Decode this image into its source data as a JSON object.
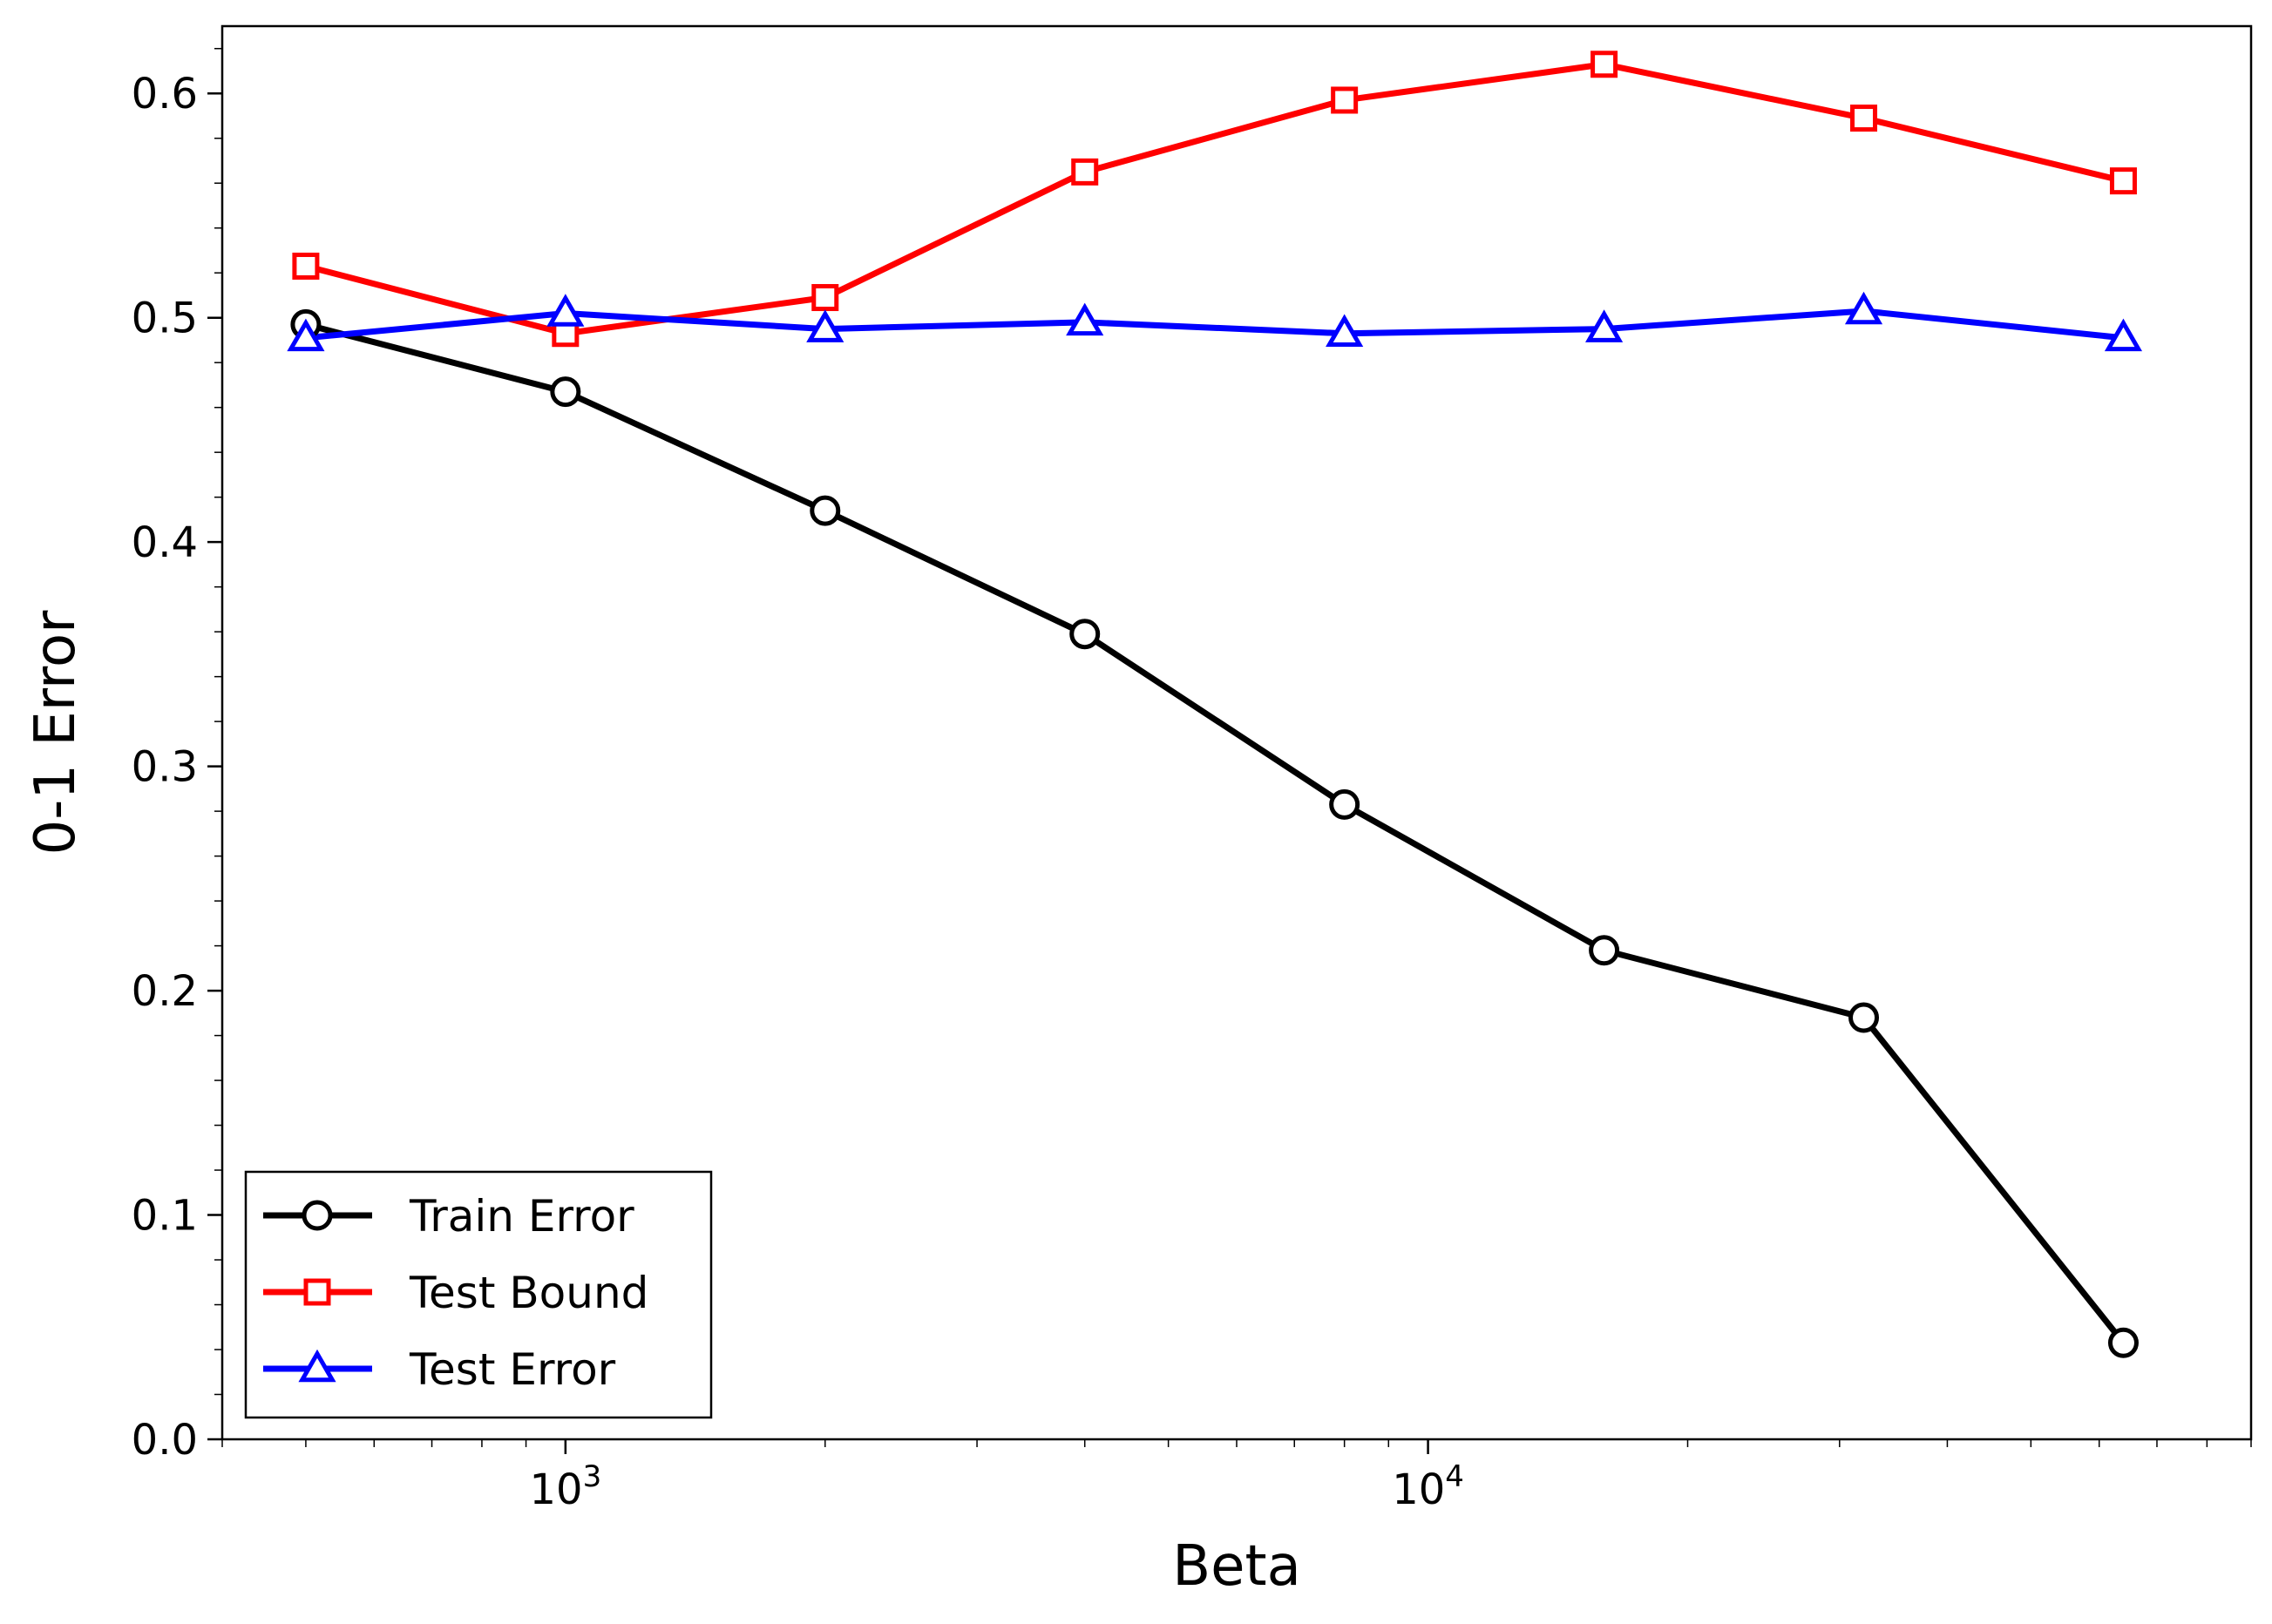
{
  "chart_data": {
    "type": "line",
    "xlabel": "Beta",
    "ylabel": "0-1 Error",
    "xscale": "log",
    "xlim": [
      400,
      90000
    ],
    "ylim": [
      0.0,
      0.63
    ],
    "x": [
      500,
      1000,
      2000,
      4000,
      8000,
      16000,
      32000,
      64000
    ],
    "x_ticks": [
      {
        "value": 1000,
        "base": "10",
        "exp": "3"
      },
      {
        "value": 10000,
        "base": "10",
        "exp": "4"
      }
    ],
    "y_ticks": [
      "0.0",
      "0.1",
      "0.2",
      "0.3",
      "0.4",
      "0.5",
      "0.6"
    ],
    "grid": false,
    "legend_position": "lower-left",
    "series": [
      {
        "name": "Train Error",
        "color": "#000000",
        "marker": "circle",
        "values": [
          0.497,
          0.467,
          0.414,
          0.359,
          0.283,
          0.218,
          0.188,
          0.043
        ]
      },
      {
        "name": "Test Bound",
        "color": "#ff0000",
        "marker": "square",
        "values": [
          0.523,
          0.493,
          0.509,
          0.565,
          0.597,
          0.613,
          0.589,
          0.561
        ]
      },
      {
        "name": "Test Error",
        "color": "#0000ff",
        "marker": "triangle",
        "values": [
          0.491,
          0.502,
          0.495,
          0.498,
          0.493,
          0.495,
          0.503,
          0.491
        ]
      }
    ]
  }
}
